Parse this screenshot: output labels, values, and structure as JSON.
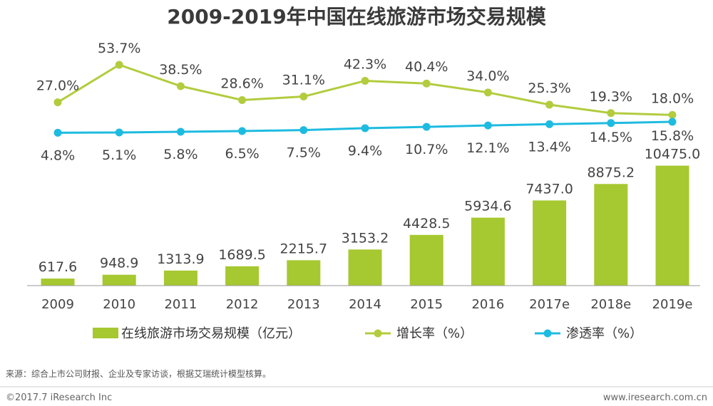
{
  "chart_data": {
    "type": "bar",
    "title": "2009-2019年中国在线旅游市场交易规模",
    "categories": [
      "2009",
      "2010",
      "2011",
      "2012",
      "2013",
      "2014",
      "2015",
      "2016",
      "2017e",
      "2018e",
      "2019e"
    ],
    "series": [
      {
        "name": "在线旅游市场交易规模（亿元）",
        "kind": "bar",
        "values": [
          617.6,
          948.9,
          1313.9,
          1689.5,
          2215.7,
          3153.2,
          4428.5,
          5934.6,
          7437.0,
          8875.2,
          10475.0
        ],
        "labels": [
          "617.6",
          "948.9",
          "1313.9",
          "1689.5",
          "2215.7",
          "3153.2",
          "4428.5",
          "5934.6",
          "7437.0",
          "8875.2",
          "10475.0"
        ]
      },
      {
        "name": "增长率（%）",
        "kind": "line",
        "values": [
          27.0,
          53.7,
          38.5,
          28.6,
          31.1,
          42.3,
          40.4,
          34.0,
          25.3,
          19.3,
          18.0
        ],
        "labels": [
          "27.0%",
          "53.7%",
          "38.5%",
          "28.6%",
          "31.1%",
          "42.3%",
          "40.4%",
          "34.0%",
          "25.3%",
          "19.3%",
          "18.0%"
        ]
      },
      {
        "name": "渗透率（%）",
        "kind": "line",
        "values": [
          4.8,
          5.1,
          5.8,
          6.5,
          7.5,
          9.4,
          10.7,
          12.1,
          13.4,
          14.5,
          15.8
        ],
        "labels": [
          "4.8%",
          "5.1%",
          "5.8%",
          "6.5%",
          "7.5%",
          "9.4%",
          "10.7%",
          "12.1%",
          "13.4%",
          "14.5%",
          "15.8%"
        ]
      }
    ],
    "colors": {
      "bar": "#a6c830",
      "growth": "#b2cc3e",
      "penetration": "#1ebbe0"
    },
    "legend_position": "bottom",
    "grid": false
  },
  "source_note": "来源：综合上市公司财报、企业及专家访谈，根据艾瑞统计模型核算。",
  "footer": {
    "copyright": "©2017.7 iResearch Inc",
    "website": "www.iresearch.com.cn"
  }
}
